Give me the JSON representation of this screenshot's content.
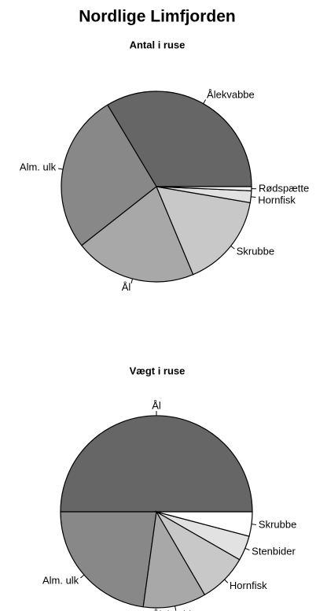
{
  "title": "Nordlige Limfjorden",
  "chart_data": [
    {
      "type": "pie",
      "title": "Antal i ruse",
      "categories": [
        "Ålekvabbe",
        "Alm. ulk",
        "Ål",
        "Skrubbe",
        "Hornfisk",
        "Rødspætte"
      ],
      "values": [
        33.6,
        27,
        20.7,
        16,
        2,
        0.7
      ],
      "colors": [
        "#666666",
        "#888888",
        "#a8a8a8",
        "#c8c8c8",
        "#e2e2e2",
        "#f6f6f6"
      ]
    },
    {
      "type": "pie",
      "title": "Vægt i ruse",
      "categories": [
        "Ål",
        "Alm. ulk",
        "Ålekvabbe",
        "Hornfisk",
        "Stenbider",
        "Skrubbe"
      ],
      "values": [
        50,
        22.8,
        10.6,
        8.3,
        4.2,
        4.1
      ],
      "colors": [
        "#666666",
        "#888888",
        "#a8a8a8",
        "#c8c8c8",
        "#e2e2e2",
        "#ffffff"
      ]
    }
  ]
}
